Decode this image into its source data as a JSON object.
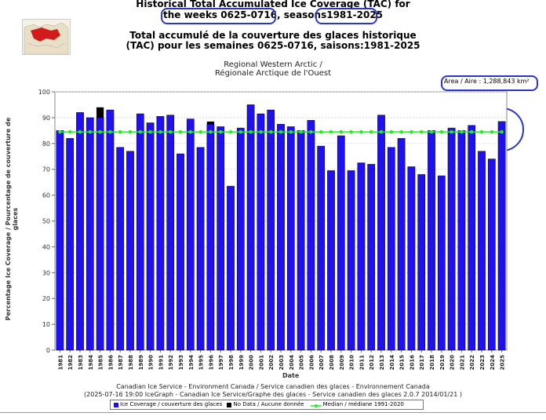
{
  "titles": {
    "en_line1": "Historical Total Accumulated Ice Coverage (TAC) for",
    "en_weeks": "the weeks 0625-0716,",
    "en_seasons_label": "seasons",
    "en_seasons": "1981-2025",
    "fr_line1": "Total accumulé de la couverture des glaces historique",
    "fr_line2": "(TAC) pour les semaines 0625-0716, saisons:1981-2025",
    "region_en": "Regional Western Arctic /",
    "region_fr": "Régionale Arctique de l'Ouest"
  },
  "area_label": "Area / Aire : 1,288,843 km²",
  "footer": {
    "line1": "Canadian Ice Service - Environment Canada / Service canadien des glaces - Environnement Canada",
    "line2": "(2025-07-16 19:00 IceGraph - Canadian Ice Service/Graphe des glaces - Service canadien des glaces 2.0.7 2014/01/21 )"
  },
  "legend": {
    "ice": "Ice Coverage / couverture des glaces",
    "nodata": "No Data / Aucune donnée",
    "median": "Median / médiane 1991-2020"
  },
  "colors": {
    "bar": "#1f10f0",
    "nodata": "#000000",
    "median": "#22ee22",
    "highlight": "#2a36c8"
  },
  "chart_data": {
    "type": "bar",
    "xlabel": "Date",
    "ylabel": "Percentage Ice Coverage / Pourcentage de couverture de glaces",
    "ylim": [
      0,
      100
    ],
    "yticks": [
      0,
      10,
      20,
      30,
      40,
      50,
      60,
      70,
      80,
      90,
      100
    ],
    "grid": true,
    "categories": [
      "1981",
      "1982",
      "1983",
      "1984",
      "1985",
      "1986",
      "1987",
      "1988",
      "1989",
      "1990",
      "1991",
      "1992",
      "1993",
      "1994",
      "1995",
      "1996",
      "1997",
      "1998",
      "1999",
      "2000",
      "2001",
      "2002",
      "2003",
      "2004",
      "2005",
      "2006",
      "2007",
      "2008",
      "2009",
      "2010",
      "2011",
      "2012",
      "2013",
      "2014",
      "2015",
      "2016",
      "2017",
      "2018",
      "2019",
      "2020",
      "2021",
      "2022",
      "2023",
      "2024",
      "2025"
    ],
    "series": [
      {
        "name": "Ice Coverage / couverture des glaces",
        "values": [
          85,
          82,
          92,
          90,
          90,
          93,
          78.5,
          77,
          91.5,
          88,
          90.5,
          91,
          76,
          89.5,
          78.5,
          87.5,
          86.5,
          63.5,
          86,
          95,
          91.5,
          93,
          87.5,
          86.5,
          85,
          89,
          79,
          69.5,
          83,
          69.5,
          72.5,
          72,
          91,
          78.5,
          82,
          71,
          68,
          85,
          67.5,
          86,
          85,
          87,
          77,
          74,
          88.5
        ]
      },
      {
        "name": "No Data / Aucune donnée",
        "values": [
          0,
          0,
          0,
          0,
          94,
          0,
          0,
          0,
          0,
          0,
          0,
          0,
          0,
          0,
          0,
          88.5,
          0,
          0,
          0,
          0,
          0,
          0,
          0,
          0,
          0,
          0,
          0,
          0,
          0,
          0,
          0,
          0,
          0,
          0,
          0,
          0,
          0,
          0,
          0,
          0,
          0,
          0,
          0,
          0,
          0
        ]
      },
      {
        "name": "Median / médiane 1991-2020",
        "value": 84.5
      }
    ]
  }
}
